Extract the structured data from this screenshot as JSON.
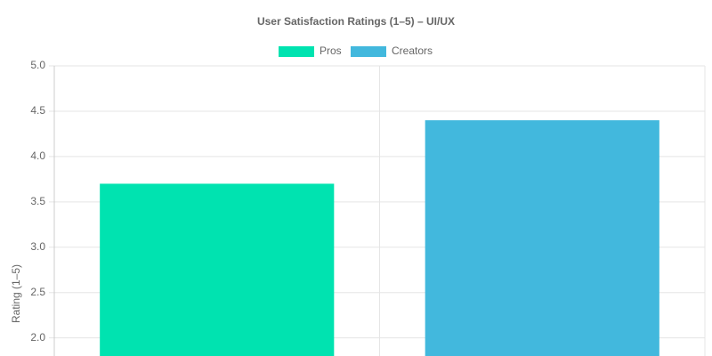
{
  "chart_data": {
    "type": "bar",
    "title": "User Satisfaction Ratings (1–5) – UI/UX",
    "y_label": "Rating (1–5)",
    "categories": [
      null,
      null
    ],
    "series": [
      {
        "name": "Pros",
        "color": "#00e3b0",
        "values": [
          3.7,
          null
        ]
      },
      {
        "name": "Creators",
        "color": "#42b8dd",
        "values": [
          null,
          4.4
        ]
      }
    ],
    "ylim": [
      1.8,
      5
    ],
    "yticks": [
      {
        "value": 2,
        "label": "2.0"
      },
      {
        "value": 2.5,
        "label": "2.5"
      },
      {
        "value": 3,
        "label": "3.0"
      },
      {
        "value": 3.5,
        "label": "3.5"
      },
      {
        "value": 4,
        "label": "4.0"
      },
      {
        "value": 4.5,
        "label": "4.5"
      },
      {
        "value": 5,
        "label": "5.0"
      }
    ],
    "grid": true
  }
}
